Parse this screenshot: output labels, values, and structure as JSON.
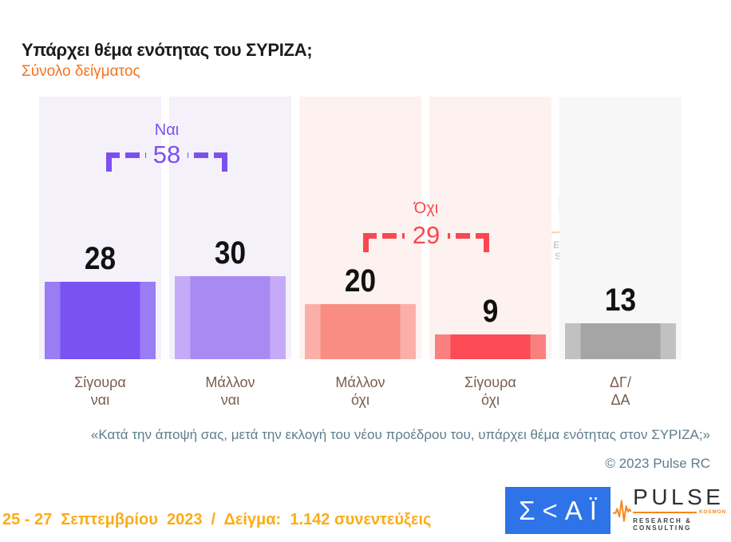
{
  "header": {
    "title": "Υπάρχει θέμα ενότητας του ΣΥΡΙΖΑ;",
    "subtitle": "Σύνολο δείγματος",
    "subtitle_color": "#F4731F"
  },
  "chart_data": {
    "type": "bar",
    "title": "Υπάρχει θέμα ενότητας του ΣΥΡΙΖΑ;",
    "subtitle": "Σύνολο δείγματος",
    "categories": [
      "Σίγουρα\nναι",
      "Μάλλον\nναι",
      "Μάλλον\nόχι",
      "Σίγουρα\nόχι",
      "ΔΓ/\nΔΑ"
    ],
    "values": [
      28,
      30,
      20,
      9,
      13
    ],
    "ylim": [
      0,
      95
    ],
    "grid": false,
    "legend": false,
    "value_labels_shown": true,
    "groups": [
      {
        "label": "Ναι",
        "value": 58,
        "covers": "Σίγουρα ναι + Μάλλον ναι",
        "color": "#7C50EF"
      },
      {
        "label": "Όχι",
        "value": 29,
        "covers": "Μάλλον όχι + Σίγουρα όχι",
        "color": "#F94850"
      }
    ],
    "bar_styles": [
      {
        "main": "#7B52F2",
        "edge": "#9A7CF4",
        "column_bg": "#F4F1FB"
      },
      {
        "main": "#A98AF3",
        "edge": "#C5ABF7",
        "column_bg": "#F4F1FB"
      },
      {
        "main": "#F98D84",
        "edge": "#FBAFA8",
        "column_bg": "#FDF2F0"
      },
      {
        "main": "#FB4B55",
        "edge": "#F9807F",
        "column_bg": "#FDF2F0"
      },
      {
        "main": "#A5A5A5",
        "edge": "#C1C1C1",
        "column_bg": "#F7F7F7"
      }
    ],
    "category_label_color": "#7B5B50"
  },
  "footer": {
    "question_quote": "«Κατά την άποψή σας, μετά την εκλογή του νέου προέδρου του, υπάρχει θέμα ενότητας στον ΣΥΡΙΖΑ;»",
    "copyright": "© 2023 Pulse RC",
    "fieldwork": "25 - 27  Σεπτεμβρίου  2023  /  Δείγμα:  1.142 συνεντεύξεις",
    "fieldwork_color": "#FBAC18"
  },
  "logos": {
    "skai": {
      "text": "Σ<ΑΪ",
      "bg": "#2E74E8"
    },
    "pulse": {
      "name": "PULSE",
      "tag": "KOSMON",
      "sub": "RESEARCH & CONSULTING",
      "accent": "#F5861F"
    }
  }
}
